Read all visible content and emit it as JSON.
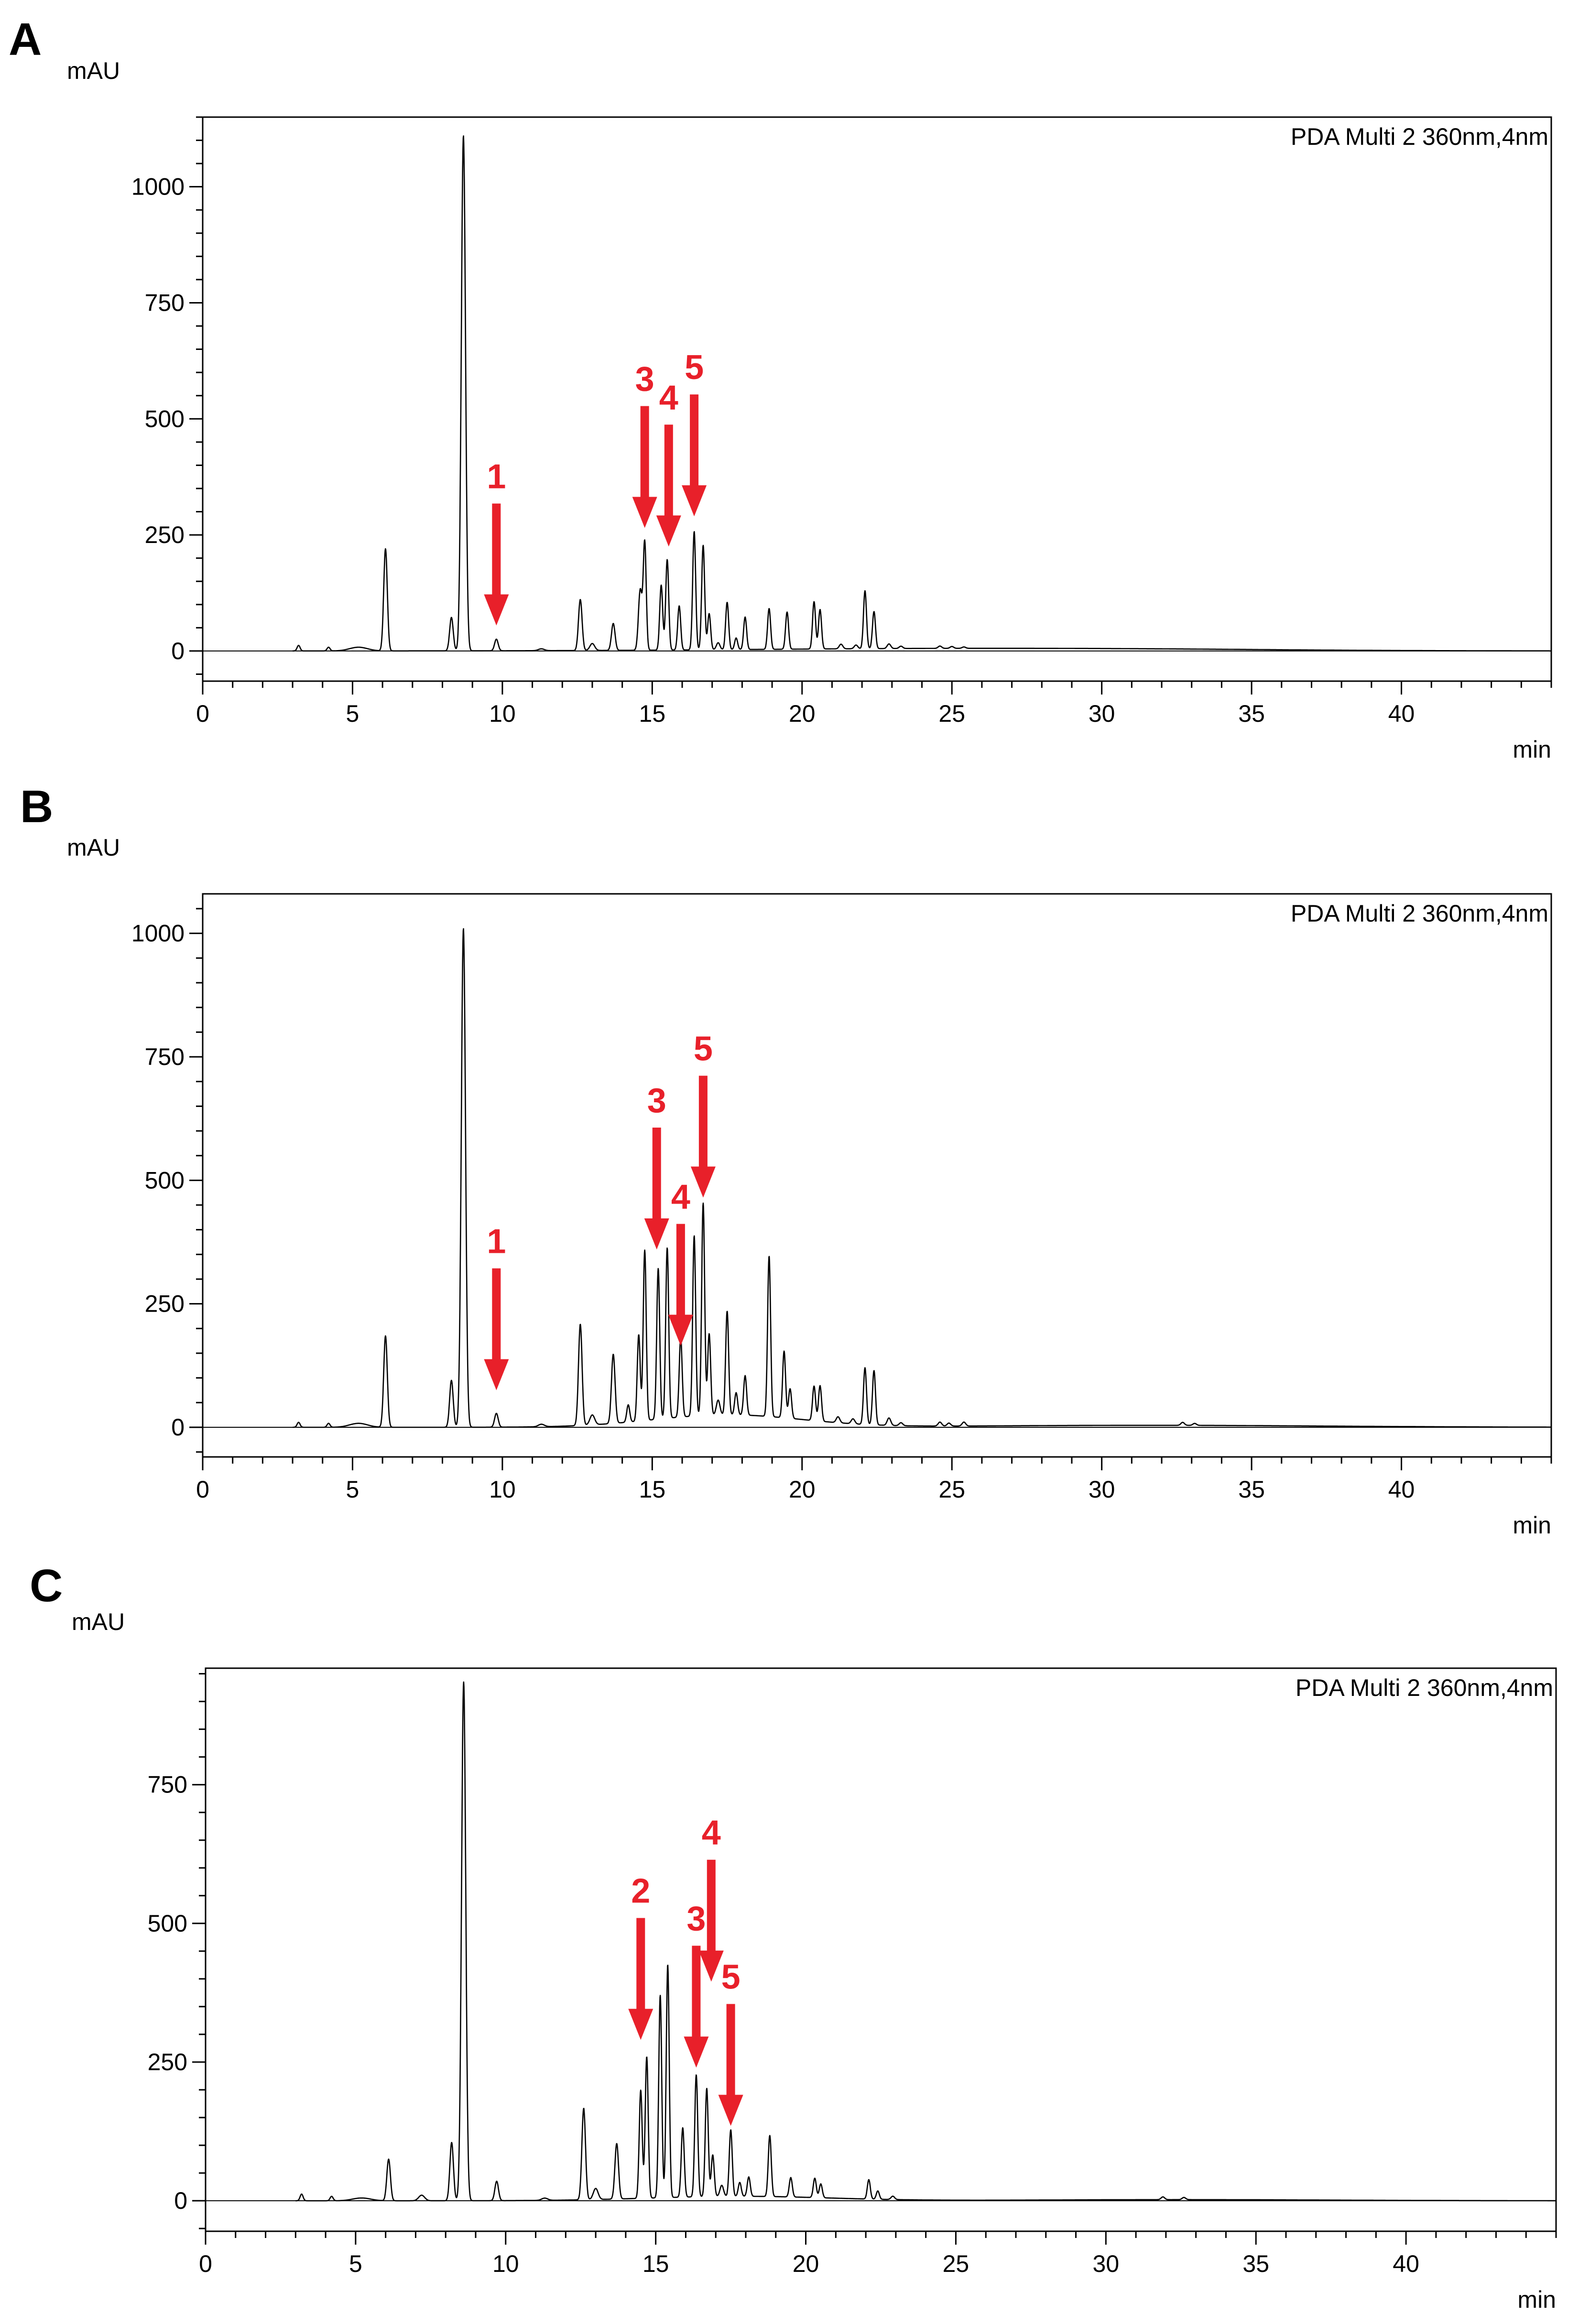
{
  "chart_data": [
    {
      "type": "line",
      "panel": "A",
      "title": "PDA Multi 2 360nm,4nm",
      "xlabel": "min",
      "ylabel": "mAU",
      "xlim": [
        0,
        45
      ],
      "ylim": [
        -65,
        1150
      ],
      "xticks": [
        0,
        5,
        10,
        15,
        20,
        25,
        30,
        35,
        40
      ],
      "yticks": [
        0,
        250,
        500,
        750,
        1000
      ],
      "peaks": [
        [
          3.2,
          12,
          0.05
        ],
        [
          4.2,
          8,
          0.05
        ],
        [
          5.2,
          8,
          0.3
        ],
        [
          6.1,
          220,
          0.06
        ],
        [
          8.3,
          72,
          0.06
        ],
        [
          8.7,
          1110,
          0.07
        ],
        [
          9.8,
          25,
          0.06
        ],
        [
          11.3,
          4,
          0.1
        ],
        [
          12.6,
          110,
          0.06
        ],
        [
          13.0,
          15,
          0.08
        ],
        [
          13.7,
          58,
          0.06
        ],
        [
          14.6,
          130,
          0.06
        ],
        [
          14.75,
          232,
          0.05
        ],
        [
          15.3,
          140,
          0.05
        ],
        [
          15.5,
          195,
          0.05
        ],
        [
          15.9,
          95,
          0.05
        ],
        [
          16.4,
          255,
          0.05
        ],
        [
          16.7,
          225,
          0.05
        ],
        [
          16.9,
          78,
          0.05
        ],
        [
          17.2,
          15,
          0.06
        ],
        [
          17.5,
          102,
          0.05
        ],
        [
          17.8,
          25,
          0.05
        ],
        [
          18.1,
          70,
          0.05
        ],
        [
          18.9,
          88,
          0.05
        ],
        [
          19.5,
          80,
          0.05
        ],
        [
          20.4,
          102,
          0.05
        ],
        [
          20.6,
          85,
          0.05
        ],
        [
          21.3,
          10,
          0.06
        ],
        [
          21.8,
          8,
          0.06
        ],
        [
          22.1,
          125,
          0.05
        ],
        [
          22.4,
          80,
          0.05
        ],
        [
          22.9,
          10,
          0.06
        ],
        [
          23.3,
          5,
          0.06
        ],
        [
          24.6,
          5,
          0.06
        ],
        [
          25.0,
          4,
          0.06
        ],
        [
          25.4,
          3,
          0.06
        ]
      ],
      "hump": [
        24.5,
        6.5,
        5
      ],
      "hump2": [
        32.5,
        5,
        2
      ],
      "annotations": [
        {
          "label": "1",
          "x": 9.8,
          "tip": 55
        },
        {
          "label": "3",
          "x": 14.75,
          "tip": 265
        },
        {
          "label": "4",
          "x": 15.55,
          "tip": 225
        },
        {
          "label": "5",
          "x": 16.4,
          "tip": 290
        }
      ]
    },
    {
      "type": "line",
      "panel": "B",
      "title": "PDA Multi 2 360nm,4nm",
      "xlabel": "min",
      "ylabel": "mAU",
      "xlim": [
        0,
        45
      ],
      "ylim": [
        -60,
        1080
      ],
      "xticks": [
        0,
        5,
        10,
        15,
        20,
        25,
        30,
        35,
        40
      ],
      "yticks": [
        0,
        250,
        500,
        750,
        1000
      ],
      "peaks": [
        [
          3.2,
          10,
          0.05
        ],
        [
          4.2,
          8,
          0.05
        ],
        [
          5.2,
          8,
          0.3
        ],
        [
          6.1,
          185,
          0.06
        ],
        [
          8.3,
          95,
          0.06
        ],
        [
          8.7,
          1010,
          0.07
        ],
        [
          9.8,
          28,
          0.06
        ],
        [
          11.3,
          5,
          0.1
        ],
        [
          12.6,
          205,
          0.06
        ],
        [
          13.0,
          20,
          0.08
        ],
        [
          13.7,
          140,
          0.06
        ],
        [
          14.2,
          35,
          0.05
        ],
        [
          14.55,
          175,
          0.05
        ],
        [
          14.75,
          345,
          0.05
        ],
        [
          15.2,
          305,
          0.05
        ],
        [
          15.5,
          345,
          0.05
        ],
        [
          15.95,
          160,
          0.05
        ],
        [
          16.4,
          365,
          0.05
        ],
        [
          16.7,
          430,
          0.05
        ],
        [
          16.9,
          165,
          0.05
        ],
        [
          17.2,
          30,
          0.06
        ],
        [
          17.5,
          210,
          0.05
        ],
        [
          17.8,
          45,
          0.05
        ],
        [
          18.1,
          80,
          0.05
        ],
        [
          18.9,
          325,
          0.05
        ],
        [
          19.4,
          135,
          0.05
        ],
        [
          19.6,
          60,
          0.05
        ],
        [
          20.4,
          70,
          0.05
        ],
        [
          20.6,
          72,
          0.05
        ],
        [
          21.2,
          12,
          0.06
        ],
        [
          21.7,
          10,
          0.06
        ],
        [
          22.1,
          115,
          0.05
        ],
        [
          22.4,
          110,
          0.05
        ],
        [
          22.9,
          15,
          0.06
        ],
        [
          23.3,
          6,
          0.06
        ],
        [
          24.6,
          8,
          0.06
        ],
        [
          24.9,
          6,
          0.06
        ],
        [
          25.4,
          8,
          0.06
        ],
        [
          32.7,
          6,
          0.06
        ],
        [
          33.1,
          4,
          0.06
        ]
      ],
      "hump": [
        17.5,
        2.5,
        25
      ],
      "hump2": [
        31.5,
        6,
        4
      ],
      "annotations": [
        {
          "label": "1",
          "x": 9.8,
          "tip": 75
        },
        {
          "label": "3",
          "x": 15.15,
          "tip": 360
        },
        {
          "label": "4",
          "x": 15.95,
          "tip": 165
        },
        {
          "label": "5",
          "x": 16.7,
          "tip": 465
        }
      ]
    },
    {
      "type": "line",
      "panel": "C",
      "title": "PDA Multi 2 360nm,4nm",
      "xlabel": "min",
      "ylabel": "mAU",
      "xlim": [
        0,
        45
      ],
      "ylim": [
        -55,
        960
      ],
      "xticks": [
        0,
        5,
        10,
        15,
        20,
        25,
        30,
        35,
        40
      ],
      "yticks": [
        0,
        250,
        500,
        750
      ],
      "peaks": [
        [
          3.2,
          12,
          0.05
        ],
        [
          4.2,
          8,
          0.05
        ],
        [
          5.2,
          5,
          0.3
        ],
        [
          6.1,
          75,
          0.06
        ],
        [
          7.2,
          10,
          0.1
        ],
        [
          8.2,
          105,
          0.06
        ],
        [
          8.6,
          935,
          0.07
        ],
        [
          9.7,
          35,
          0.06
        ],
        [
          11.3,
          4,
          0.1
        ],
        [
          12.6,
          165,
          0.06
        ],
        [
          13.0,
          20,
          0.08
        ],
        [
          13.7,
          100,
          0.06
        ],
        [
          14.5,
          195,
          0.05
        ],
        [
          14.7,
          255,
          0.05
        ],
        [
          15.15,
          365,
          0.05
        ],
        [
          15.4,
          420,
          0.05
        ],
        [
          15.9,
          125,
          0.05
        ],
        [
          16.35,
          220,
          0.05
        ],
        [
          16.7,
          195,
          0.05
        ],
        [
          16.9,
          75,
          0.05
        ],
        [
          17.2,
          20,
          0.06
        ],
        [
          17.5,
          120,
          0.05
        ],
        [
          17.8,
          25,
          0.05
        ],
        [
          18.1,
          35,
          0.05
        ],
        [
          18.8,
          110,
          0.05
        ],
        [
          19.5,
          35,
          0.05
        ],
        [
          20.3,
          35,
          0.05
        ],
        [
          20.5,
          25,
          0.05
        ],
        [
          22.1,
          35,
          0.05
        ],
        [
          22.4,
          15,
          0.05
        ],
        [
          22.9,
          6,
          0.06
        ],
        [
          31.9,
          5,
          0.06
        ],
        [
          32.6,
          4,
          0.06
        ]
      ],
      "hump": [
        17.8,
        3,
        8
      ],
      "hump2": [
        32.5,
        5,
        2
      ],
      "annotations": [
        {
          "label": "2",
          "x": 14.5,
          "tip": 290
        },
        {
          "label": "3",
          "x": 16.35,
          "tip": 240
        },
        {
          "label": "4",
          "x": 16.85,
          "tip": 395
        },
        {
          "label": "5",
          "x": 17.5,
          "tip": 135
        }
      ]
    }
  ],
  "colors": {
    "annotation": "#e8202a",
    "trace": "#000000",
    "axis": "#000000"
  }
}
